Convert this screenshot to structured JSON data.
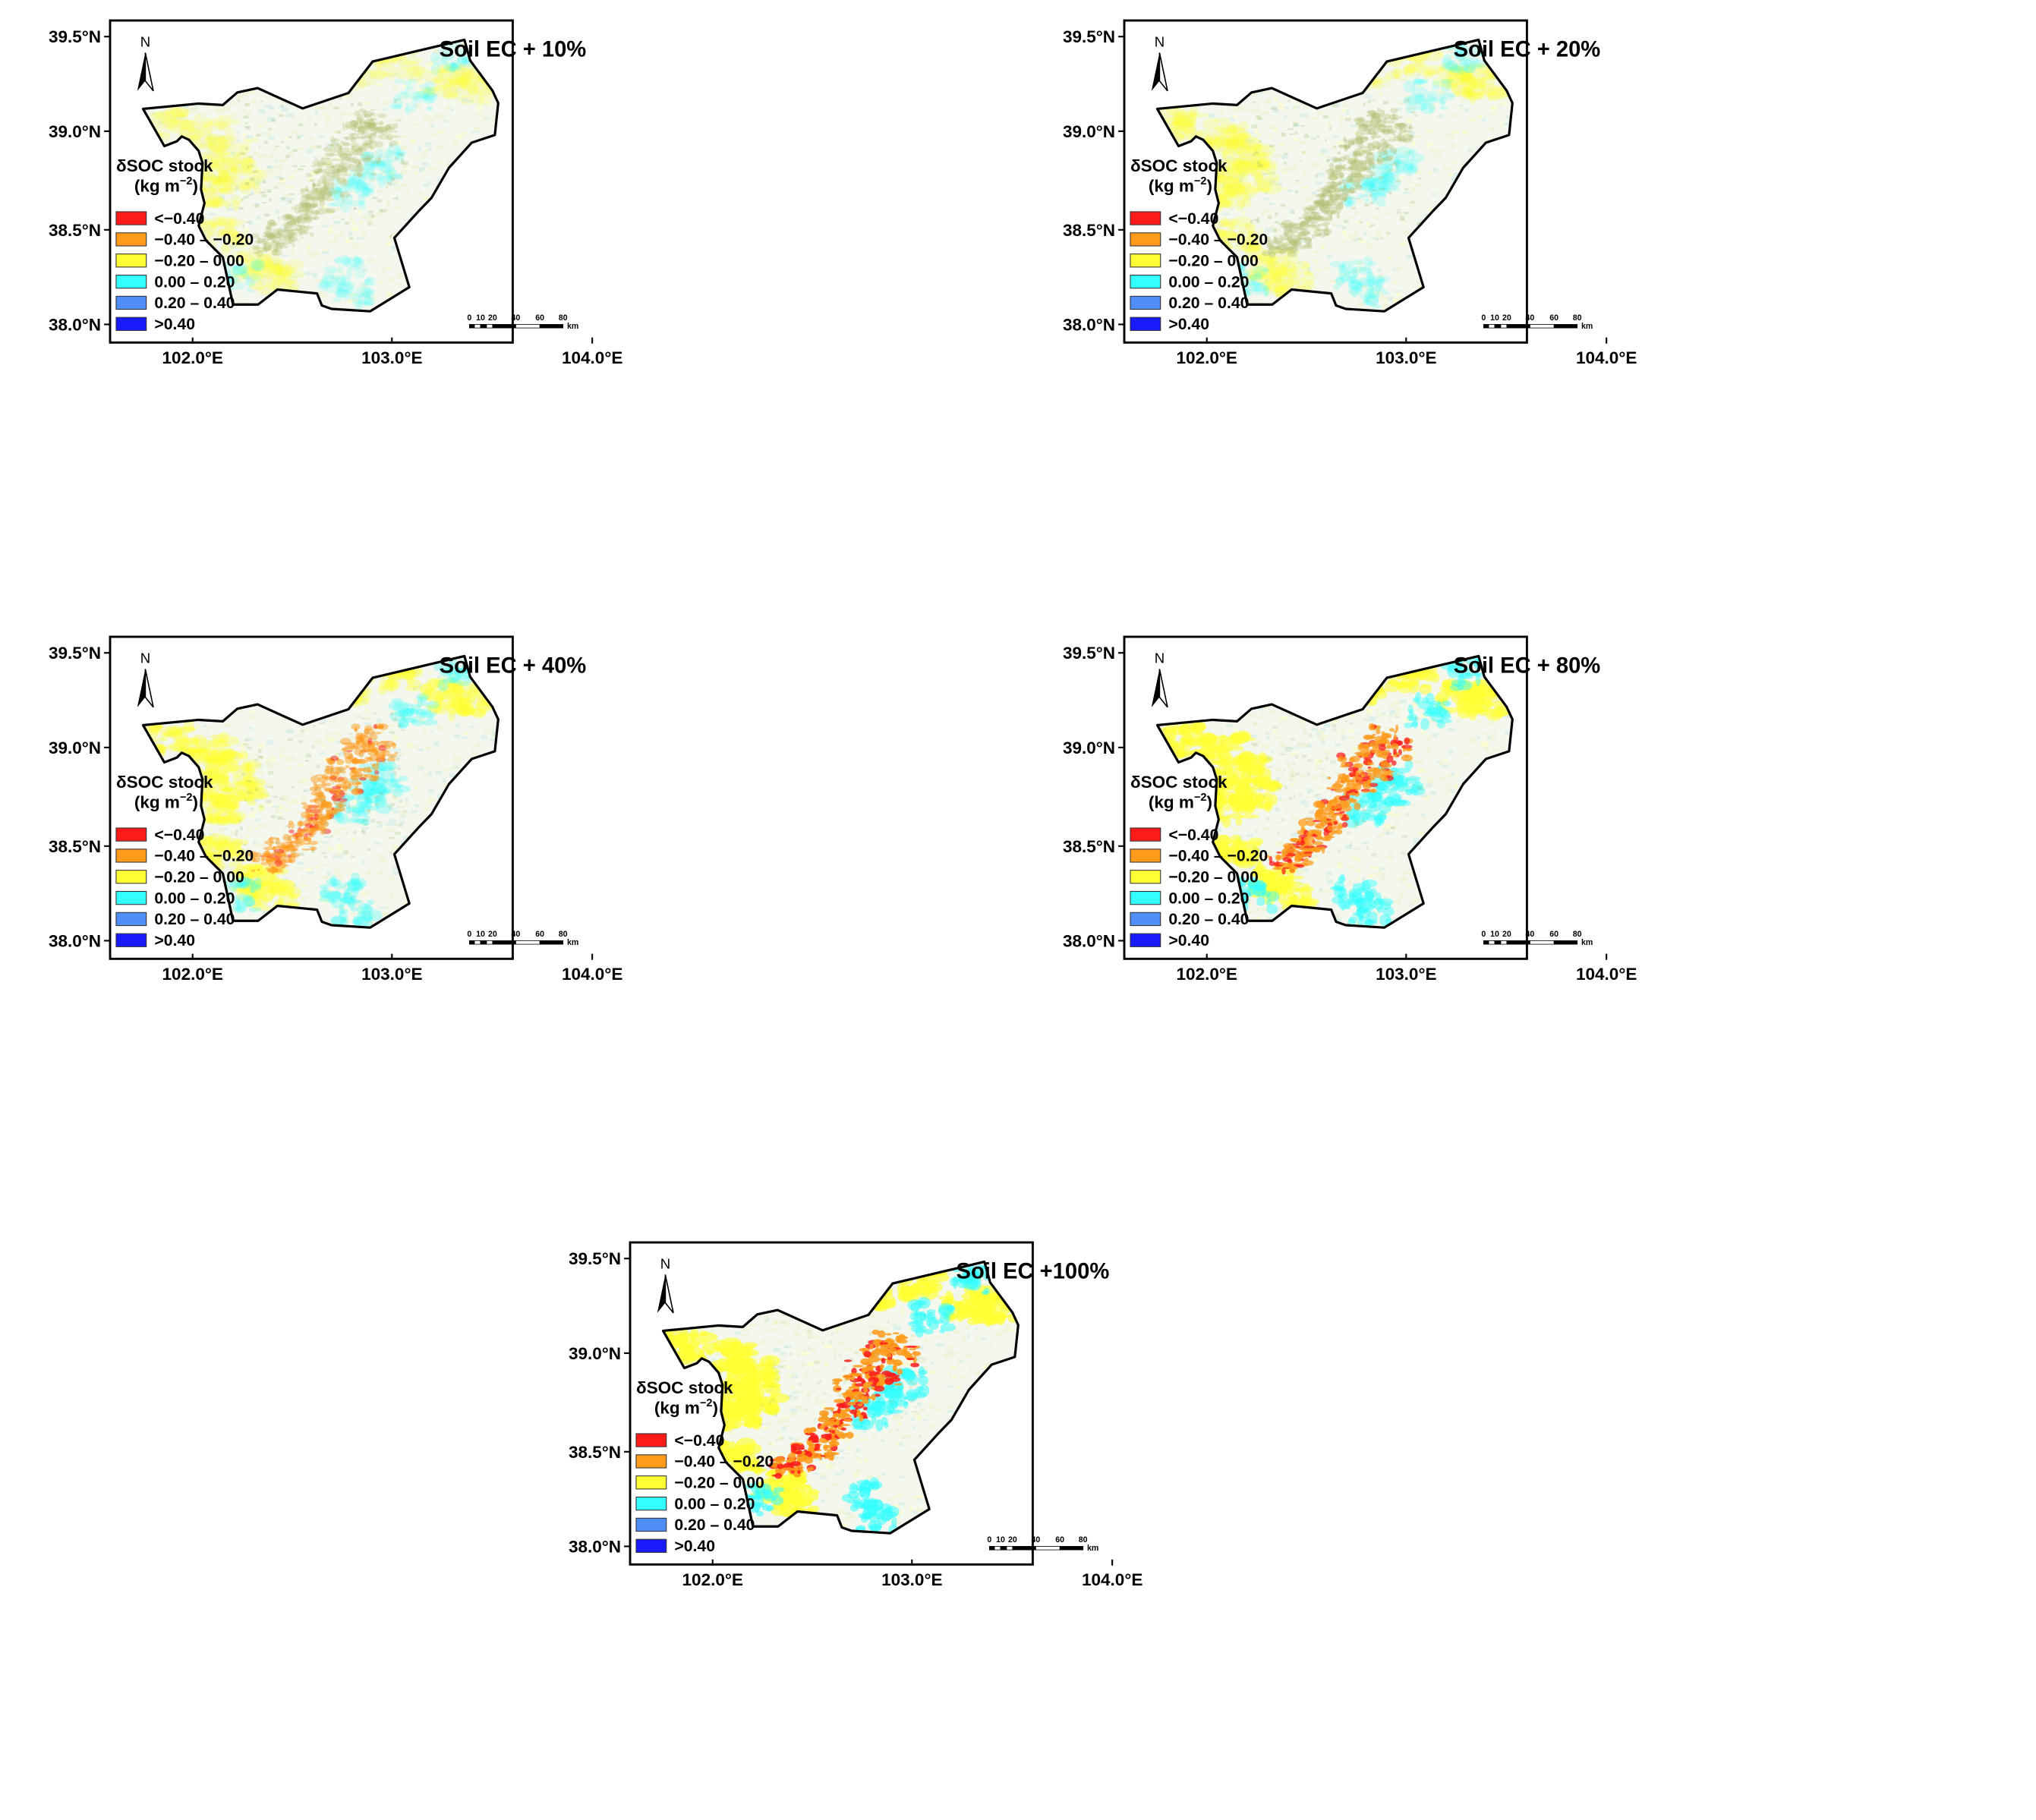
{
  "legend": {
    "title": "δSOC stock",
    "unit_prefix": "(kg m",
    "unit_exp": "−2",
    "unit_suffix": ")",
    "classes": [
      {
        "label": "<−0.40",
        "color": "#ff1a1a"
      },
      {
        "label": "−0.40 – −0.20",
        "color": "#ff9a1a"
      },
      {
        "label": "−0.20 – 0.00",
        "color": "#ffff33"
      },
      {
        "label": "0.00 – 0.20",
        "color": "#33ffff"
      },
      {
        "label": "0.20 – 0.40",
        "color": "#4f8ef7"
      },
      {
        "label": ">0.40",
        "color": "#1a1aff"
      }
    ]
  },
  "axes": {
    "lat_ticks": [
      "39.5°N",
      "39.0°N",
      "38.5°N",
      "38.0°N"
    ],
    "lon_ticks": [
      "102.0°E",
      "103.0°E",
      "104.0°E"
    ]
  },
  "scale_bar": {
    "labels": [
      "0",
      "10",
      "20",
      "40",
      "60",
      "80"
    ],
    "unit": "km"
  },
  "north_arrow": {
    "label": "N",
    "icon": "north-arrow-icon"
  },
  "panels": [
    {
      "id": "ec10",
      "title": "Soil EC + 10%",
      "intensity": 0.1
    },
    {
      "id": "ec20",
      "title": "Soil EC + 20%",
      "intensity": 0.2
    },
    {
      "id": "ec40",
      "title": "Soil EC + 40%",
      "intensity": 0.4
    },
    {
      "id": "ec80",
      "title": "Soil EC + 80%",
      "intensity": 0.8
    },
    {
      "id": "ec100",
      "title": "Soil EC +100%",
      "intensity": 1.0
    }
  ]
}
